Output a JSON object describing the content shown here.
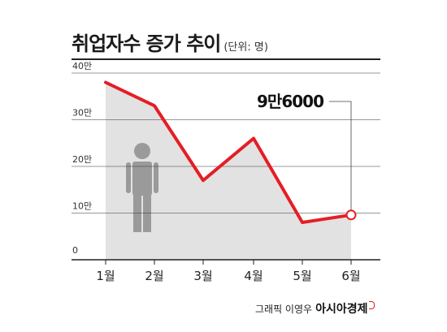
{
  "header": {
    "title": "취업자수 증가 추이",
    "unit": "(단위: 명)"
  },
  "footer": {
    "credit": "그래픽 이영우",
    "brand": "아시아경제"
  },
  "colors": {
    "line": "#e41e26",
    "area": "#e2e2e2",
    "figure": "#9a9a9a",
    "grid": "#333333"
  },
  "icons": [
    "person-icon",
    "brand-mark-icon"
  ],
  "chart_data": {
    "type": "area",
    "categories": [
      "1월",
      "2월",
      "3월",
      "4월",
      "5월",
      "6월"
    ],
    "series": [
      {
        "values": [
          380000,
          330000,
          170000,
          260000,
          80000,
          96000
        ]
      }
    ],
    "yticks": [
      {
        "value": 0,
        "label": "0"
      },
      {
        "value": 100000,
        "label": "10만"
      },
      {
        "value": 200000,
        "label": "20만"
      },
      {
        "value": 300000,
        "label": "30만"
      },
      {
        "value": 400000,
        "label": "40만"
      }
    ],
    "ylim": [
      0,
      400000
    ],
    "grid": true,
    "annotation": {
      "category": "6월",
      "text": "9만6000"
    }
  }
}
